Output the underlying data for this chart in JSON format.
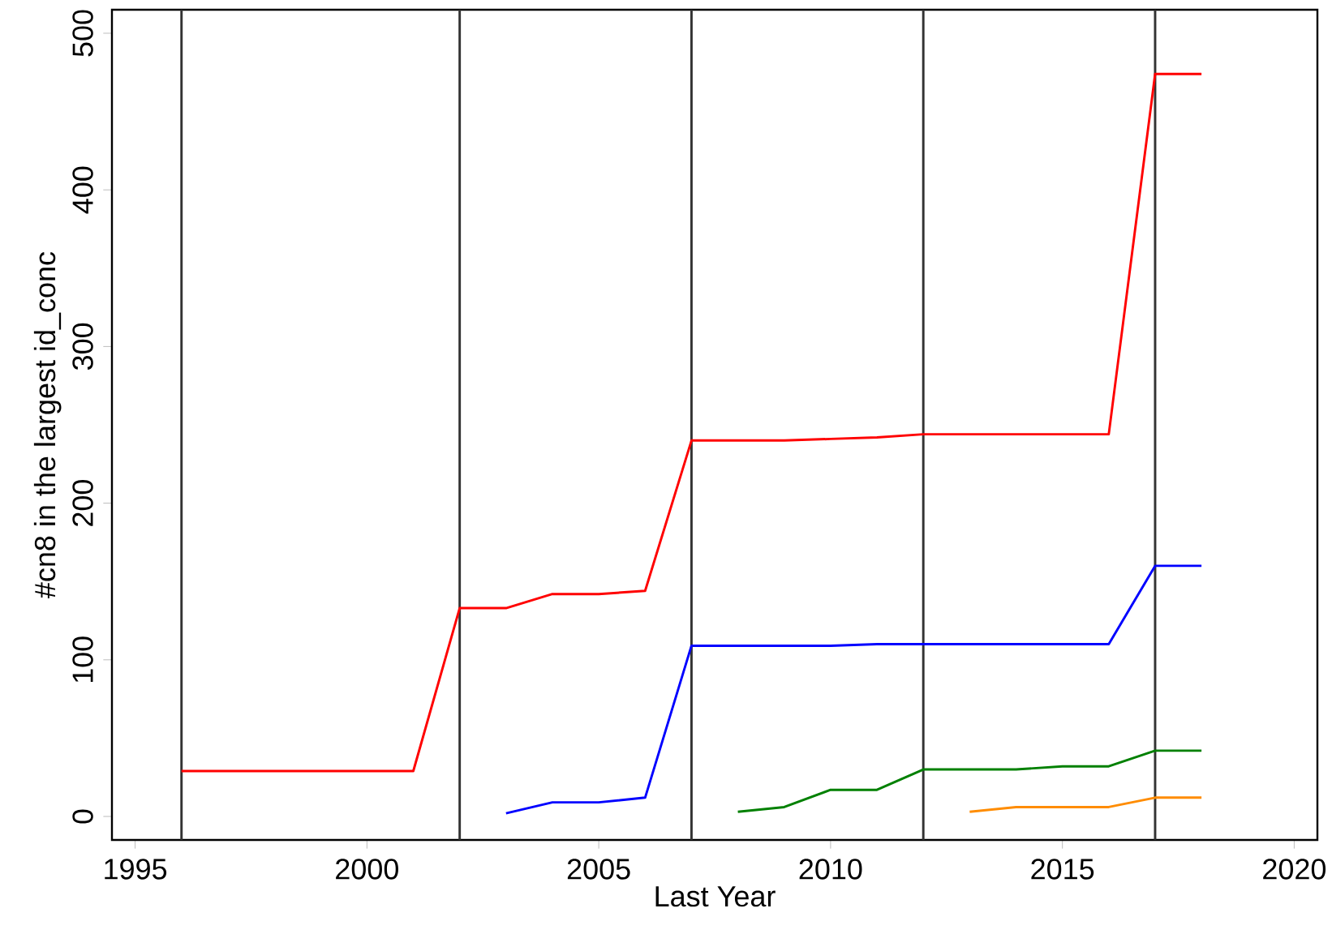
{
  "chart_data": {
    "type": "line",
    "xlabel": "Last Year",
    "ylabel": "#cn8 in the largest id_conc",
    "xlim": [
      1994.5,
      2020.5
    ],
    "ylim": [
      -15,
      515
    ],
    "xticks": [
      1995,
      2000,
      2005,
      2010,
      2015,
      2020
    ],
    "yticks": [
      0,
      100,
      200,
      300,
      400,
      500
    ],
    "marker": "none",
    "line_style": "solid",
    "series": [
      {
        "color": "#ff0000",
        "x": [
          1996,
          1997,
          1998,
          1999,
          2000,
          2001,
          2002,
          2003,
          2004,
          2005,
          2006,
          2007,
          2008,
          2009,
          2010,
          2011,
          2012,
          2013,
          2014,
          2015,
          2016,
          2017,
          2018
        ],
        "values": [
          29,
          29,
          29,
          29,
          29,
          29,
          133,
          133,
          142,
          142,
          144,
          240,
          240,
          240,
          241,
          242,
          244,
          244,
          244,
          244,
          244,
          474,
          474
        ]
      },
      {
        "color": "#0000ff",
        "x": [
          2003,
          2004,
          2005,
          2006,
          2007,
          2008,
          2009,
          2010,
          2011,
          2012,
          2013,
          2014,
          2015,
          2016,
          2017,
          2018
        ],
        "values": [
          2,
          9,
          9,
          12,
          109,
          109,
          109,
          109,
          110,
          110,
          110,
          110,
          110,
          110,
          160,
          160
        ]
      },
      {
        "color": "#008000",
        "x": [
          2008,
          2009,
          2010,
          2011,
          2012,
          2013,
          2014,
          2015,
          2016,
          2017,
          2018
        ],
        "values": [
          3,
          6,
          17,
          17,
          30,
          30,
          30,
          32,
          32,
          42,
          42
        ]
      },
      {
        "color": "#ff8c00",
        "x": [
          2013,
          2014,
          2015,
          2016,
          2017,
          2018
        ],
        "values": [
          3,
          6,
          6,
          6,
          12,
          12
        ]
      }
    ],
    "ref_lines": [
      {
        "axis": "x",
        "value": 1996,
        "color": "#333333"
      },
      {
        "axis": "x",
        "value": 2002,
        "color": "#333333"
      },
      {
        "axis": "x",
        "value": 2007,
        "color": "#333333"
      },
      {
        "axis": "x",
        "value": 2012,
        "color": "#333333"
      },
      {
        "axis": "x",
        "value": 2017,
        "color": "#333333"
      }
    ]
  }
}
